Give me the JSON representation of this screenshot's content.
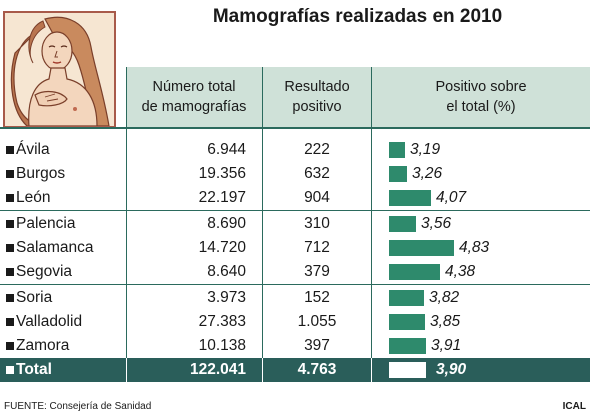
{
  "title": "Mamografías realizadas en 2010",
  "headers": {
    "col1": "Número total\nde mamografías",
    "col2": "Resultado\npositivo",
    "col3": "Positivo sobre\nel total (%)"
  },
  "colors": {
    "bar": "#2e8a6c",
    "header_bg": "#cfe1d8",
    "total_bg": "#2a5e5a",
    "rule": "#2b6a5d"
  },
  "chart_data": {
    "type": "bar",
    "title": "Mamografías realizadas en 2010",
    "categories": [
      "Ávila",
      "Burgos",
      "León",
      "Palencia",
      "Salamanca",
      "Segovia",
      "Soria",
      "Valladolid",
      "Zamora"
    ],
    "mamografias": [
      "6.944",
      "19.356",
      "22.197",
      "8.690",
      "14.720",
      "8.640",
      "3.973",
      "27.383",
      "10.138"
    ],
    "positivos": [
      "222",
      "632",
      "904",
      "310",
      "712",
      "379",
      "152",
      "1.055",
      "397"
    ],
    "values": [
      3.19,
      3.26,
      4.07,
      3.56,
      4.83,
      4.38,
      3.82,
      3.85,
      3.91
    ],
    "value_labels": [
      "3,19",
      "3,26",
      "4,07",
      "3,56",
      "4,83",
      "4,38",
      "3,82",
      "3,85",
      "3,91"
    ],
    "group_breaks_after": [
      2,
      5
    ],
    "total": {
      "label": "Total",
      "mamografias": "122.041",
      "positivos": "4.763",
      "value": 3.9,
      "value_label": "3,90"
    },
    "xlim": [
      0,
      5
    ]
  },
  "footer": {
    "source": "FUENTE: Consejería de Sanidad",
    "credit": "ICAL"
  }
}
